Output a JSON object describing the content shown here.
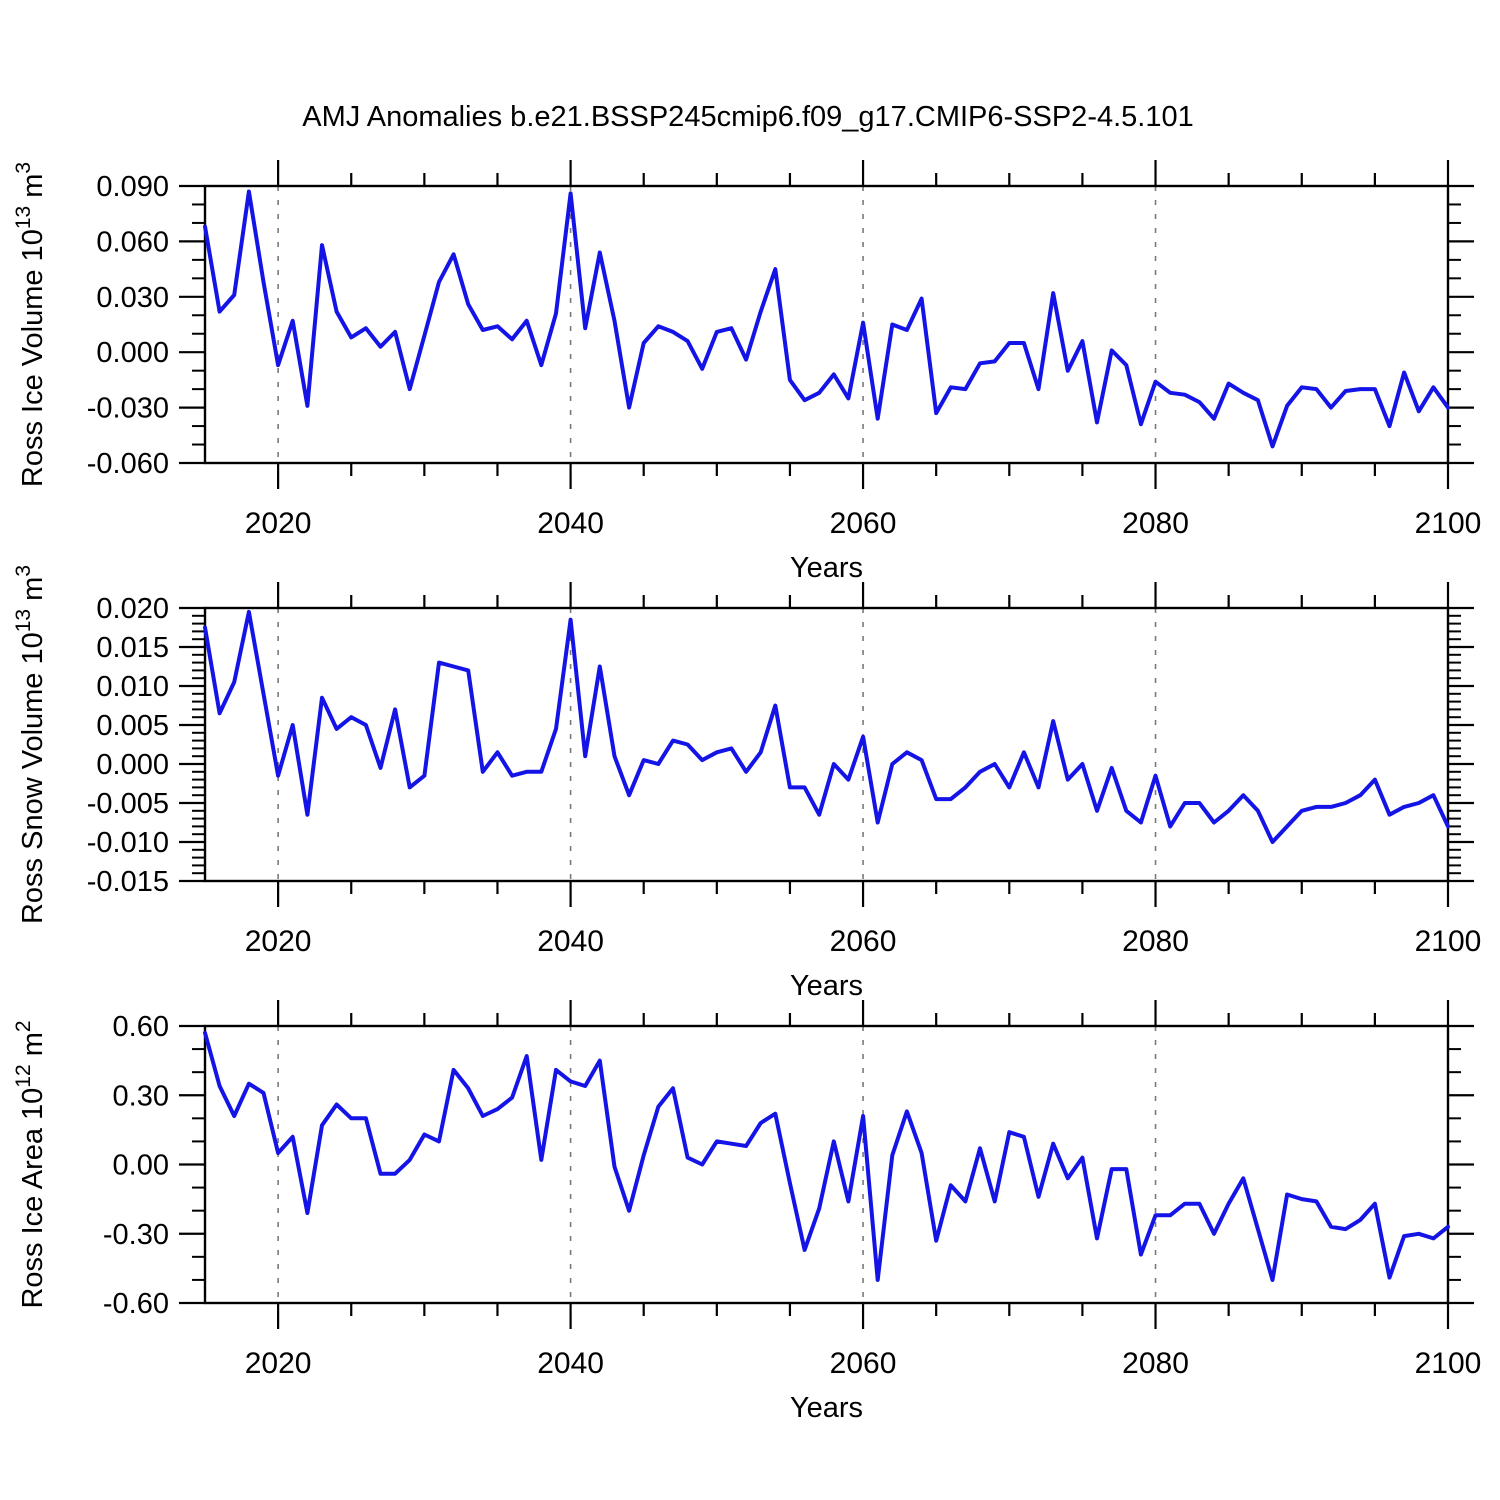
{
  "title": "AMJ Anomalies b.e21.BSSP245cmip6.f09_g17.CMIP6-SSP2-4.5.101",
  "colors": {
    "line": "#1414e6",
    "axis": "#000000",
    "grid": "#7a7a7a",
    "background": "#ffffff"
  },
  "years": [
    2015,
    2016,
    2017,
    2018,
    2019,
    2020,
    2021,
    2022,
    2023,
    2024,
    2025,
    2026,
    2027,
    2028,
    2029,
    2030,
    2031,
    2032,
    2033,
    2034,
    2035,
    2036,
    2037,
    2038,
    2039,
    2040,
    2041,
    2042,
    2043,
    2044,
    2045,
    2046,
    2047,
    2048,
    2049,
    2050,
    2051,
    2052,
    2053,
    2054,
    2055,
    2056,
    2057,
    2058,
    2059,
    2060,
    2061,
    2062,
    2063,
    2064,
    2065,
    2066,
    2067,
    2068,
    2069,
    2070,
    2071,
    2072,
    2073,
    2074,
    2075,
    2076,
    2077,
    2078,
    2079,
    2080,
    2081,
    2082,
    2083,
    2084,
    2085,
    2086,
    2087,
    2088,
    2089,
    2090,
    2091,
    2092,
    2093,
    2094,
    2095,
    2096,
    2097,
    2098,
    2099,
    2100
  ],
  "chart_data": [
    {
      "type": "line",
      "name": "ross-ice-volume",
      "ylabel_parts": [
        {
          "t": "Ross Ice Volume 10"
        },
        {
          "t": "13",
          "sup": true
        },
        {
          "t": " m"
        },
        {
          "t": "3",
          "sup": true
        }
      ],
      "xlabel": "Years",
      "xlim": [
        2015,
        2100
      ],
      "ylim": [
        -0.06,
        0.09
      ],
      "yticks": [
        {
          "v": 0.09,
          "label": "0.090"
        },
        {
          "v": 0.06,
          "label": "0.060"
        },
        {
          "v": 0.03,
          "label": "0.030"
        },
        {
          "v": 0.0,
          "label": "0.000"
        },
        {
          "v": -0.03,
          "label": "-0.030"
        },
        {
          "v": -0.06,
          "label": "-0.060"
        }
      ],
      "y_minor_step": 0.01,
      "xticks_major": [
        2020,
        2040,
        2060,
        2080,
        2100
      ],
      "x_minor_step": 5,
      "grid_x": [
        2020,
        2040,
        2060,
        2080
      ],
      "values": [
        0.068,
        0.022,
        0.031,
        0.087,
        0.038,
        -0.007,
        0.017,
        -0.029,
        0.058,
        0.022,
        0.008,
        0.013,
        0.003,
        0.011,
        -0.02,
        0.009,
        0.038,
        0.053,
        0.026,
        0.012,
        0.014,
        0.007,
        0.017,
        -0.007,
        0.021,
        0.086,
        0.013,
        0.054,
        0.017,
        -0.03,
        0.005,
        0.014,
        0.011,
        0.006,
        -0.009,
        0.011,
        0.013,
        -0.004,
        0.022,
        0.045,
        -0.015,
        -0.026,
        -0.022,
        -0.012,
        -0.025,
        0.016,
        -0.036,
        0.015,
        0.012,
        0.029,
        -0.033,
        -0.019,
        -0.02,
        -0.006,
        -0.005,
        0.005,
        0.005,
        -0.02,
        0.032,
        -0.01,
        0.006,
        -0.038,
        0.001,
        -0.007,
        -0.039,
        -0.016,
        -0.022,
        -0.023,
        -0.027,
        -0.036,
        -0.017,
        -0.022,
        -0.026,
        -0.051,
        -0.029,
        -0.019,
        -0.02,
        -0.03,
        -0.021,
        -0.02,
        -0.02,
        -0.04,
        -0.011,
        -0.032,
        -0.019,
        -0.03
      ]
    },
    {
      "type": "line",
      "name": "ross-snow-volume",
      "ylabel_parts": [
        {
          "t": "Ross Snow Volume 10"
        },
        {
          "t": "13",
          "sup": true
        },
        {
          "t": " m"
        },
        {
          "t": "3",
          "sup": true
        }
      ],
      "xlabel": "Years",
      "xlim": [
        2015,
        2100
      ],
      "ylim": [
        -0.015,
        0.02
      ],
      "yticks": [
        {
          "v": 0.02,
          "label": "0.020"
        },
        {
          "v": 0.015,
          "label": "0.015"
        },
        {
          "v": 0.01,
          "label": "0.010"
        },
        {
          "v": 0.005,
          "label": "0.005"
        },
        {
          "v": 0.0,
          "label": "0.000"
        },
        {
          "v": -0.005,
          "label": "-0.005"
        },
        {
          "v": -0.01,
          "label": "-0.010"
        },
        {
          "v": -0.015,
          "label": "-0.015"
        }
      ],
      "y_minor_step": 0.001,
      "xticks_major": [
        2020,
        2040,
        2060,
        2080,
        2100
      ],
      "x_minor_step": 5,
      "grid_x": [
        2020,
        2040,
        2060,
        2080
      ],
      "values": [
        0.0175,
        0.0065,
        0.0105,
        0.0195,
        0.009,
        -0.0015,
        0.005,
        -0.0065,
        0.0085,
        0.0045,
        0.006,
        0.005,
        -0.0005,
        0.007,
        -0.003,
        -0.0015,
        0.013,
        0.0125,
        0.012,
        -0.001,
        0.0015,
        -0.0015,
        -0.001,
        -0.001,
        0.0045,
        0.0185,
        0.001,
        0.0125,
        0.001,
        -0.004,
        0.0005,
        0.0,
        0.003,
        0.0025,
        0.0005,
        0.0015,
        0.002,
        -0.001,
        0.0015,
        0.0075,
        -0.003,
        -0.003,
        -0.0065,
        0.0,
        -0.002,
        0.0035,
        -0.0075,
        0.0,
        0.0015,
        0.0005,
        -0.0045,
        -0.0045,
        -0.003,
        -0.001,
        0.0,
        -0.003,
        0.0015,
        -0.003,
        0.0055,
        -0.002,
        0.0,
        -0.006,
        -0.0005,
        -0.006,
        -0.0075,
        -0.0015,
        -0.008,
        -0.005,
        -0.005,
        -0.0075,
        -0.006,
        -0.004,
        -0.006,
        -0.01,
        -0.008,
        -0.006,
        -0.0055,
        -0.0055,
        -0.005,
        -0.004,
        -0.002,
        -0.0065,
        -0.0055,
        -0.005,
        -0.004,
        -0.008
      ]
    },
    {
      "type": "line",
      "name": "ross-ice-area",
      "ylabel_parts": [
        {
          "t": "Ross Ice Area 10"
        },
        {
          "t": "12",
          "sup": true
        },
        {
          "t": " m"
        },
        {
          "t": "2",
          "sup": true
        }
      ],
      "xlabel": "Years",
      "xlim": [
        2015,
        2100
      ],
      "ylim": [
        -0.6,
        0.6
      ],
      "yticks": [
        {
          "v": 0.6,
          "label": "0.60"
        },
        {
          "v": 0.3,
          "label": "0.30"
        },
        {
          "v": 0.0,
          "label": "0.00"
        },
        {
          "v": -0.3,
          "label": "-0.30"
        },
        {
          "v": -0.6,
          "label": "-0.60"
        }
      ],
      "y_minor_step": 0.1,
      "xticks_major": [
        2020,
        2040,
        2060,
        2080,
        2100
      ],
      "x_minor_step": 5,
      "grid_x": [
        2020,
        2040,
        2060,
        2080
      ],
      "values": [
        0.57,
        0.34,
        0.21,
        0.35,
        0.31,
        0.05,
        0.12,
        -0.21,
        0.17,
        0.26,
        0.2,
        0.2,
        -0.04,
        -0.04,
        0.02,
        0.13,
        0.1,
        0.41,
        0.33,
        0.21,
        0.24,
        0.29,
        0.47,
        0.02,
        0.41,
        0.36,
        0.34,
        0.45,
        -0.01,
        -0.2,
        0.04,
        0.25,
        0.33,
        0.03,
        0.0,
        0.1,
        0.09,
        0.08,
        0.18,
        0.22,
        -0.08,
        -0.37,
        -0.19,
        0.1,
        -0.16,
        0.21,
        -0.5,
        0.04,
        0.23,
        0.05,
        -0.33,
        -0.09,
        -0.16,
        0.07,
        -0.16,
        0.14,
        0.12,
        -0.14,
        0.09,
        -0.06,
        0.03,
        -0.32,
        -0.02,
        -0.02,
        -0.39,
        -0.22,
        -0.22,
        -0.17,
        -0.17,
        -0.3,
        -0.17,
        -0.06,
        -0.28,
        -0.5,
        -0.13,
        -0.15,
        -0.16,
        -0.27,
        -0.28,
        -0.24,
        -0.17,
        -0.49,
        -0.31,
        -0.3,
        -0.32,
        -0.27
      ]
    }
  ]
}
